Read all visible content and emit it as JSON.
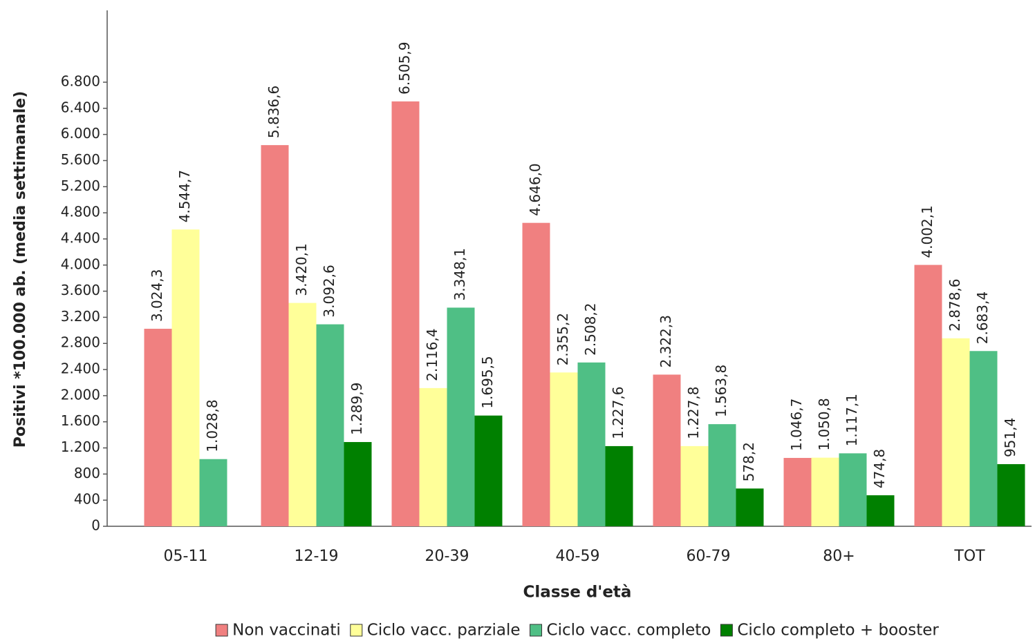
{
  "chart_data": {
    "type": "bar",
    "x_label": "Classe d'età",
    "y_label": "Positivi *100.000 ab. (media settimanale)",
    "categories": [
      "05-11",
      "12-19",
      "20-39",
      "40-59",
      "60-79",
      "80+",
      "TOT"
    ],
    "series": [
      {
        "name": "Non vaccinati",
        "color": "#f08080",
        "values": [
          3024.3,
          5836.6,
          6505.9,
          4646.0,
          2322.3,
          1046.7,
          4002.1
        ],
        "value_labels": [
          "3.024,3",
          "5.836,6",
          "6.505,9",
          "4.646,0",
          "2.322,3",
          "1.046,7",
          "4.002,1"
        ]
      },
      {
        "name": "Ciclo vacc. parziale",
        "color": "#ffff99",
        "values": [
          4544.7,
          3420.1,
          2116.4,
          2355.2,
          1227.8,
          1050.8,
          2878.6
        ],
        "value_labels": [
          "4.544,7",
          "3.420,1",
          "2.116,4",
          "2.355,2",
          "1.227,8",
          "1.050,8",
          "2.878,6"
        ]
      },
      {
        "name": "Ciclo vacc. completo",
        "color": "#4fbf85",
        "values": [
          1028.8,
          3092.6,
          3348.1,
          2508.2,
          1563.8,
          1117.1,
          2683.4
        ],
        "value_labels": [
          "1.028,8",
          "3.092,6",
          "3.348,1",
          "2.508,2",
          "1.563,8",
          "1.117,1",
          "2.683,4"
        ]
      },
      {
        "name": "Ciclo completo + booster",
        "color": "#008000",
        "values": [
          null,
          1289.9,
          1695.5,
          1227.6,
          578.2,
          474.8,
          951.4
        ],
        "value_labels": [
          null,
          "1.289,9",
          "1.695,5",
          "1.227,6",
          "578,2",
          "474,8",
          "951,4"
        ]
      }
    ],
    "ylim": [
      0,
      7900
    ],
    "yticks": [
      0,
      400,
      800,
      {
        "value": 1200,
        "label": "1.200"
      },
      {
        "value": 1600,
        "label": "1.600"
      },
      {
        "value": 2000,
        "label": "2.000"
      },
      {
        "value": 2400,
        "label": "2.400"
      },
      {
        "value": 2800,
        "label": "2.800"
      },
      {
        "value": 3200,
        "label": "3.200"
      },
      {
        "value": 3600,
        "label": "3.600"
      },
      {
        "value": 4000,
        "label": "4.000"
      },
      {
        "value": 4400,
        "label": "4.400"
      },
      {
        "value": 4800,
        "label": "4.800"
      },
      {
        "value": 5200,
        "label": "5.200"
      },
      {
        "value": 5600,
        "label": "5.600"
      },
      {
        "value": 6000,
        "label": "6.000"
      },
      {
        "value": 6400,
        "label": "6.400"
      },
      {
        "value": 6800,
        "label": "6.800"
      }
    ],
    "legend": "bottom"
  }
}
